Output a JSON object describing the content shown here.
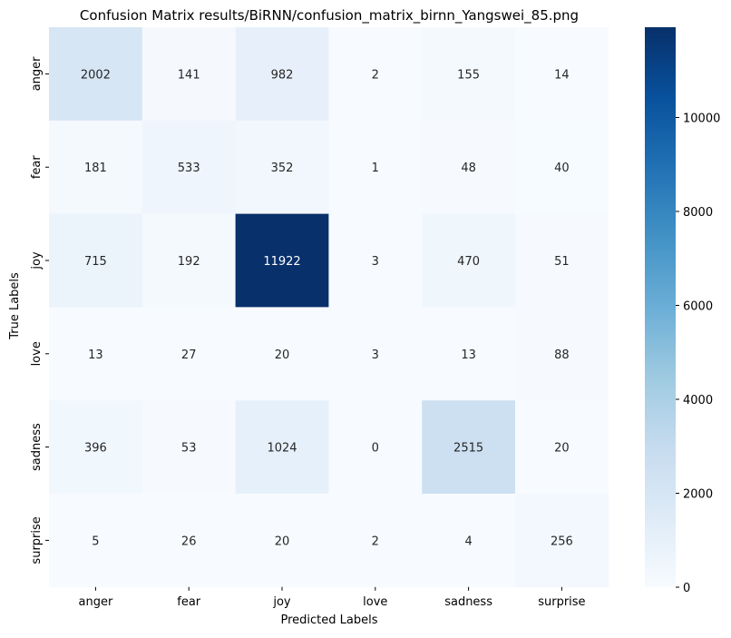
{
  "chart_data": {
    "type": "heatmap",
    "title": "Confusion Matrix results/BiRNN/confusion_matrix_birnn_Yangswei_85.png",
    "xlabel": "Predicted Labels",
    "ylabel": "True Labels",
    "x_categories": [
      "anger",
      "fear",
      "joy",
      "love",
      "sadness",
      "surprise"
    ],
    "y_categories": [
      "anger",
      "fear",
      "joy",
      "love",
      "sadness",
      "surprise"
    ],
    "values": [
      [
        2002,
        141,
        982,
        2,
        155,
        14
      ],
      [
        181,
        533,
        352,
        1,
        48,
        40
      ],
      [
        715,
        192,
        11922,
        3,
        470,
        51
      ],
      [
        13,
        27,
        20,
        3,
        13,
        88
      ],
      [
        396,
        53,
        1024,
        0,
        2515,
        20
      ],
      [
        5,
        26,
        20,
        2,
        4,
        256
      ]
    ],
    "colorbar": {
      "colormap": "Blues",
      "vmin": 0,
      "vmax": 11922,
      "ticks": [
        0,
        2000,
        4000,
        6000,
        8000,
        10000
      ]
    }
  }
}
